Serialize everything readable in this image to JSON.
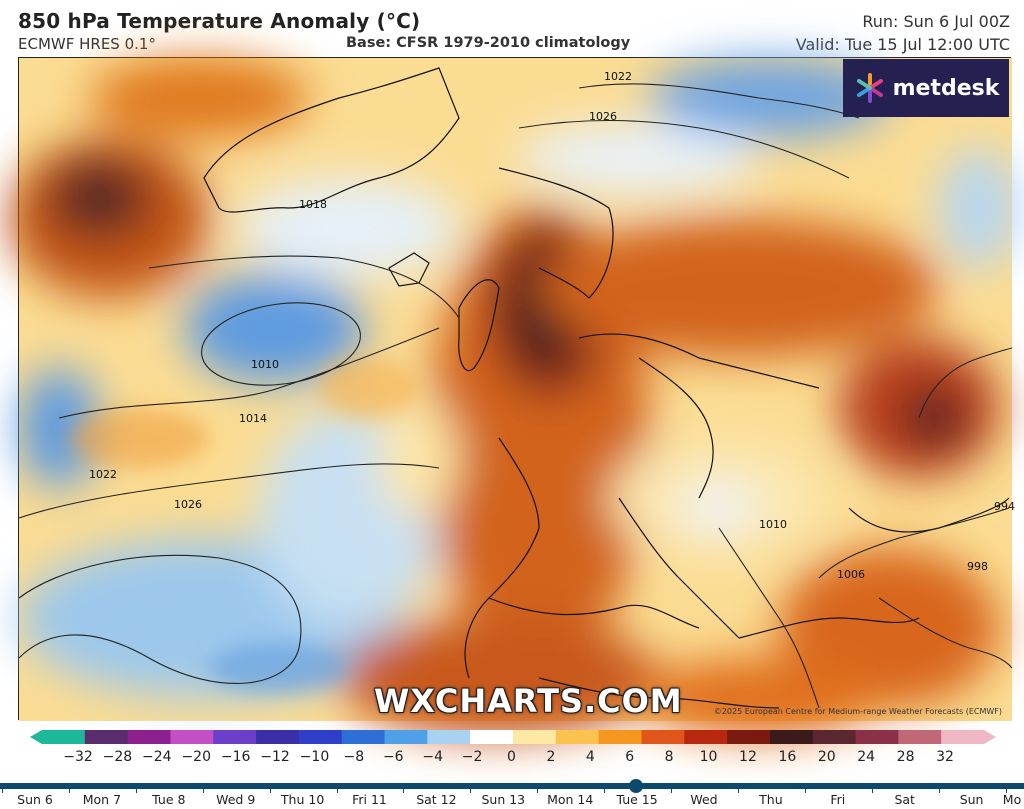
{
  "header": {
    "title": "850 hPa Temperature Anomaly (°C)",
    "model": "ECMWF HRES 0.1°",
    "base": "Base: CFSR 1979-2010 climatology",
    "run": "Run: Sun 6 Jul 00Z",
    "valid": "Valid: Tue 15 Jul 12:00 UTC"
  },
  "logo": {
    "text": "metdesk"
  },
  "watermark": "WXCHARTS.COM",
  "copyright": "©2025 European Centre for Medium-range Weather Forecasts (ECMWF)",
  "isobars": {
    "labels": [
      "1006",
      "1010",
      "1014",
      "1018",
      "1022",
      "1026",
      "998",
      "994"
    ]
  },
  "colorbar": {
    "labels": [
      "−32",
      "−28",
      "−24",
      "−20",
      "−16",
      "−12",
      "−10",
      "−8",
      "−6",
      "−4",
      "−2",
      "0",
      "2",
      "4",
      "6",
      "8",
      "10",
      "12",
      "16",
      "20",
      "24",
      "28",
      "32"
    ],
    "colors": [
      "#1db89a",
      "#5a2c6e",
      "#8e1f8f",
      "#c44ec4",
      "#6b3fc9",
      "#3b2fa8",
      "#2f3fc9",
      "#2d6fd6",
      "#4fa0e6",
      "#a9d2f2",
      "#ffffff",
      "#fde8a4",
      "#fcc24f",
      "#f5961f",
      "#e0561a",
      "#b8280f",
      "#7a1a10",
      "#3a1a1a",
      "#5a2630",
      "#8a3048",
      "#c06878",
      "#f0b8c4"
    ]
  },
  "timeline": {
    "selected": "Tue 15",
    "days": [
      "Sun 6",
      "Mon 7",
      "Tue 8",
      "Wed 9",
      "Thu 10",
      "Fri 11",
      "Sat 12",
      "Sun 13",
      "Mon 14",
      "Tue 15",
      "Wed",
      "Thu",
      "Fri",
      "Sat",
      "Sun",
      "Mo"
    ]
  }
}
